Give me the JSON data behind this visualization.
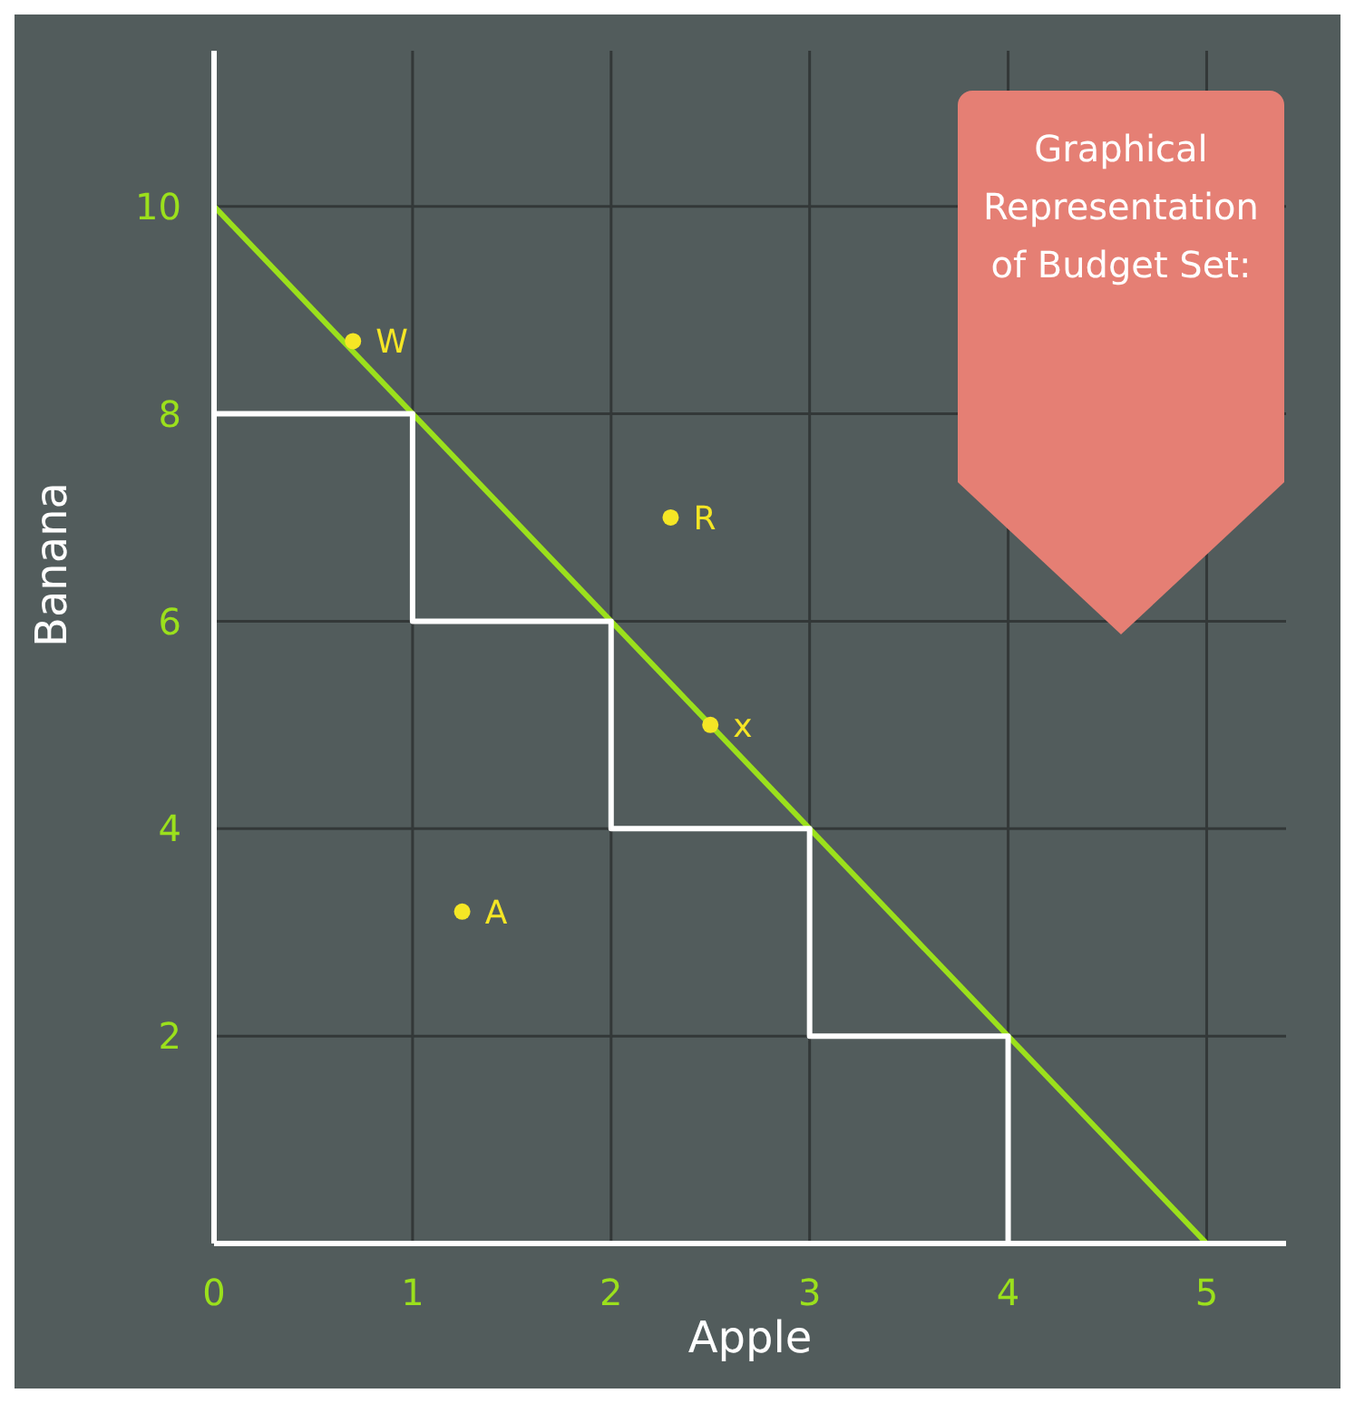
{
  "chart_data": {
    "type": "line",
    "title": "Graphical Representation of Budget Set:",
    "xlabel": "Apple",
    "ylabel": "Banana",
    "xlim": [
      0,
      5.4
    ],
    "ylim": [
      0,
      11.5
    ],
    "xticks": [
      0,
      1,
      2,
      3,
      4,
      5
    ],
    "yticks": [
      2,
      4,
      6,
      8,
      10
    ],
    "grid": true,
    "series": [
      {
        "color": "#9be01c",
        "x": [
          0,
          5
        ],
        "values": [
          10,
          0
        ],
        "marker": "none"
      },
      {
        "type": "step",
        "color": "#ffffff",
        "x": [
          0,
          1,
          2,
          3,
          4
        ],
        "values": [
          8,
          6,
          4,
          2,
          0
        ],
        "marker": "none"
      },
      {
        "type": "scatter",
        "name": "W",
        "color": "#f5e625",
        "x": [
          0.7
        ],
        "values": [
          8.7
        ],
        "marker": "circle"
      },
      {
        "type": "scatter",
        "name": "x",
        "color": "#f5e625",
        "x": [
          2.5
        ],
        "values": [
          5
        ],
        "marker": "circle"
      },
      {
        "type": "scatter",
        "name": "R",
        "color": "#f5e625",
        "x": [
          2.3
        ],
        "values": [
          7
        ],
        "marker": "circle"
      },
      {
        "type": "scatter",
        "name": "A",
        "color": "#f5e625",
        "x": [
          1.25
        ],
        "values": [
          3.2
        ],
        "marker": "circle"
      }
    ]
  }
}
